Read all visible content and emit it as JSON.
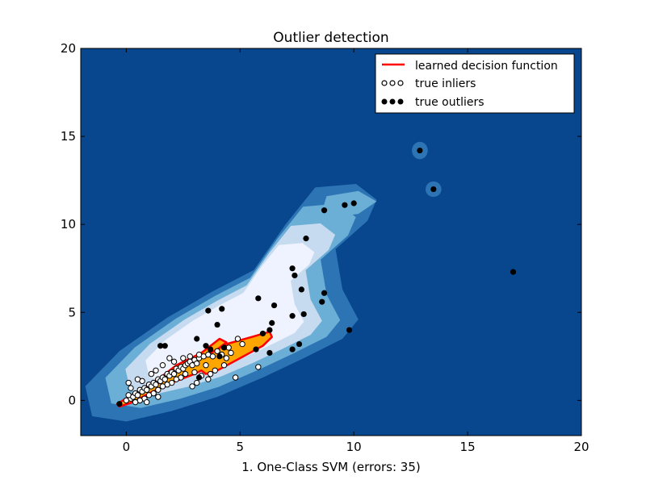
{
  "chart_data": {
    "type": "scatter",
    "title": "Outlier detection",
    "xlabel": "1. One-Class SVM (errors: 35)",
    "ylabel": "",
    "xlim": [
      -2,
      20
    ],
    "ylim": [
      -2,
      20
    ],
    "xticks": [
      "0",
      "5",
      "10",
      "15",
      "20"
    ],
    "yticks": [
      "0",
      "5",
      "10",
      "15",
      "20"
    ],
    "xtick_values": [
      0,
      5,
      10,
      15,
      20
    ],
    "ytick_values": [
      0,
      5,
      10,
      15,
      20
    ],
    "grid": false,
    "legend": {
      "placement": "top-right",
      "entries": [
        "learned decision function",
        "true inliers",
        "true outliers"
      ]
    },
    "colors": {
      "background": "#08478d",
      "contour_levels": [
        "#2d74b5",
        "#6baed6",
        "#c6dbef",
        "#eff3ff"
      ],
      "decision_fill": "#ffa500",
      "decision_line": "#ff0000",
      "inlier_face": "#ffffff",
      "outlier_face": "#000000"
    },
    "decision_region": [
      [
        -0.4,
        -0.2
      ],
      [
        0.5,
        0.5
      ],
      [
        1.5,
        1.3
      ],
      [
        2.6,
        2.0
      ],
      [
        3.6,
        2.6
      ],
      [
        4.4,
        3.2
      ],
      [
        5.5,
        3.6
      ],
      [
        6.3,
        3.9
      ],
      [
        6.4,
        3.6
      ],
      [
        6.0,
        3.1
      ],
      [
        5.0,
        2.4
      ],
      [
        4.0,
        1.7
      ],
      [
        3.5,
        1.5
      ],
      [
        3.3,
        1.7
      ],
      [
        3.0,
        1.5
      ],
      [
        2.0,
        1.0
      ],
      [
        1.0,
        0.4
      ],
      [
        0.3,
        -0.1
      ],
      [
        -0.3,
        -0.35
      ]
    ],
    "decision_region_extra": [
      [
        0.9,
        0.7
      ],
      [
        2.2,
        2.0
      ],
      [
        3.3,
        2.7
      ],
      [
        4.1,
        3.5
      ],
      [
        4.4,
        3.3
      ],
      [
        4.0,
        2.9
      ],
      [
        3.4,
        2.5
      ],
      [
        2.2,
        1.6
      ],
      [
        1.2,
        0.8
      ]
    ],
    "inliers": [
      [
        0.0,
        0.0
      ],
      [
        0.2,
        0.1
      ],
      [
        0.1,
        0.3
      ],
      [
        0.3,
        0.2
      ],
      [
        0.4,
        0.4
      ],
      [
        0.5,
        0.3
      ],
      [
        0.6,
        0.6
      ],
      [
        0.7,
        0.5
      ],
      [
        0.8,
        0.7
      ],
      [
        0.9,
        0.6
      ],
      [
        1.0,
        0.9
      ],
      [
        1.1,
        0.8
      ],
      [
        1.2,
        1.0
      ],
      [
        1.3,
        0.9
      ],
      [
        1.4,
        1.2
      ],
      [
        1.5,
        1.1
      ],
      [
        1.6,
        1.3
      ],
      [
        1.7,
        1.2
      ],
      [
        1.8,
        1.5
      ],
      [
        1.9,
        1.4
      ],
      [
        2.0,
        1.6
      ],
      [
        2.1,
        1.5
      ],
      [
        2.2,
        1.8
      ],
      [
        2.3,
        1.7
      ],
      [
        2.4,
        1.9
      ],
      [
        2.5,
        1.8
      ],
      [
        2.6,
        2.0
      ],
      [
        2.7,
        2.1
      ],
      [
        2.8,
        2.2
      ],
      [
        2.9,
        2.0
      ],
      [
        3.0,
        2.3
      ],
      [
        3.1,
        2.1
      ],
      [
        3.2,
        2.4
      ],
      [
        3.4,
        2.5
      ],
      [
        3.6,
        2.6
      ],
      [
        3.8,
        2.5
      ],
      [
        4.0,
        2.8
      ],
      [
        4.2,
        2.6
      ],
      [
        4.4,
        2.4
      ],
      [
        3.9,
        1.7
      ],
      [
        3.7,
        1.5
      ],
      [
        3.3,
        1.4
      ],
      [
        3.0,
        1.6
      ],
      [
        2.6,
        1.5
      ],
      [
        2.4,
        1.3
      ],
      [
        2.2,
        1.2
      ],
      [
        2.0,
        1.0
      ],
      [
        1.8,
        0.9
      ],
      [
        1.6,
        0.8
      ],
      [
        1.4,
        0.6
      ],
      [
        1.2,
        0.4
      ],
      [
        1.0,
        0.3
      ],
      [
        0.8,
        0.1
      ],
      [
        0.6,
        0.0
      ],
      [
        0.4,
        -0.1
      ],
      [
        0.1,
        1.0
      ],
      [
        0.5,
        1.2
      ],
      [
        1.1,
        1.5
      ],
      [
        1.6,
        2.0
      ],
      [
        1.9,
        2.4
      ],
      [
        2.5,
        2.4
      ],
      [
        2.8,
        2.5
      ],
      [
        3.2,
        2.6
      ],
      [
        3.5,
        2.0
      ],
      [
        3.6,
        1.2
      ],
      [
        4.8,
        1.3
      ],
      [
        5.8,
        1.9
      ],
      [
        5.1,
        3.2
      ],
      [
        4.6,
        2.7
      ],
      [
        4.3,
        2.0
      ],
      [
        2.9,
        0.8
      ],
      [
        3.1,
        1.0
      ],
      [
        1.4,
        0.2
      ],
      [
        0.9,
        -0.1
      ],
      [
        0.2,
        0.7
      ],
      [
        0.7,
        1.1
      ],
      [
        1.3,
        1.7
      ],
      [
        2.1,
        2.2
      ],
      [
        4.9,
        3.5
      ],
      [
        4.5,
        3.0
      ]
    ],
    "outliers": [
      [
        -0.3,
        -0.2
      ],
      [
        1.5,
        3.1
      ],
      [
        1.7,
        3.1
      ],
      [
        3.6,
        5.1
      ],
      [
        4.2,
        5.2
      ],
      [
        3.1,
        3.5
      ],
      [
        4.0,
        4.3
      ],
      [
        3.5,
        3.1
      ],
      [
        3.2,
        1.3
      ],
      [
        3.7,
        2.9
      ],
      [
        4.3,
        3.0
      ],
      [
        4.1,
        2.5
      ],
      [
        5.8,
        5.8
      ],
      [
        6.5,
        5.4
      ],
      [
        6.4,
        4.4
      ],
      [
        6.3,
        4.0
      ],
      [
        6.0,
        3.8
      ],
      [
        5.7,
        2.9
      ],
      [
        6.3,
        2.7
      ],
      [
        7.3,
        7.5
      ],
      [
        7.4,
        7.1
      ],
      [
        7.7,
        6.3
      ],
      [
        8.7,
        6.1
      ],
      [
        8.6,
        5.6
      ],
      [
        7.3,
        4.8
      ],
      [
        7.8,
        4.9
      ],
      [
        7.6,
        3.2
      ],
      [
        7.3,
        2.9
      ],
      [
        9.8,
        4.0
      ],
      [
        7.9,
        9.2
      ],
      [
        8.7,
        10.8
      ],
      [
        9.6,
        11.1
      ],
      [
        10.0,
        11.2
      ],
      [
        12.9,
        14.2
      ],
      [
        13.5,
        12.0
      ],
      [
        17.0,
        7.3
      ]
    ]
  }
}
